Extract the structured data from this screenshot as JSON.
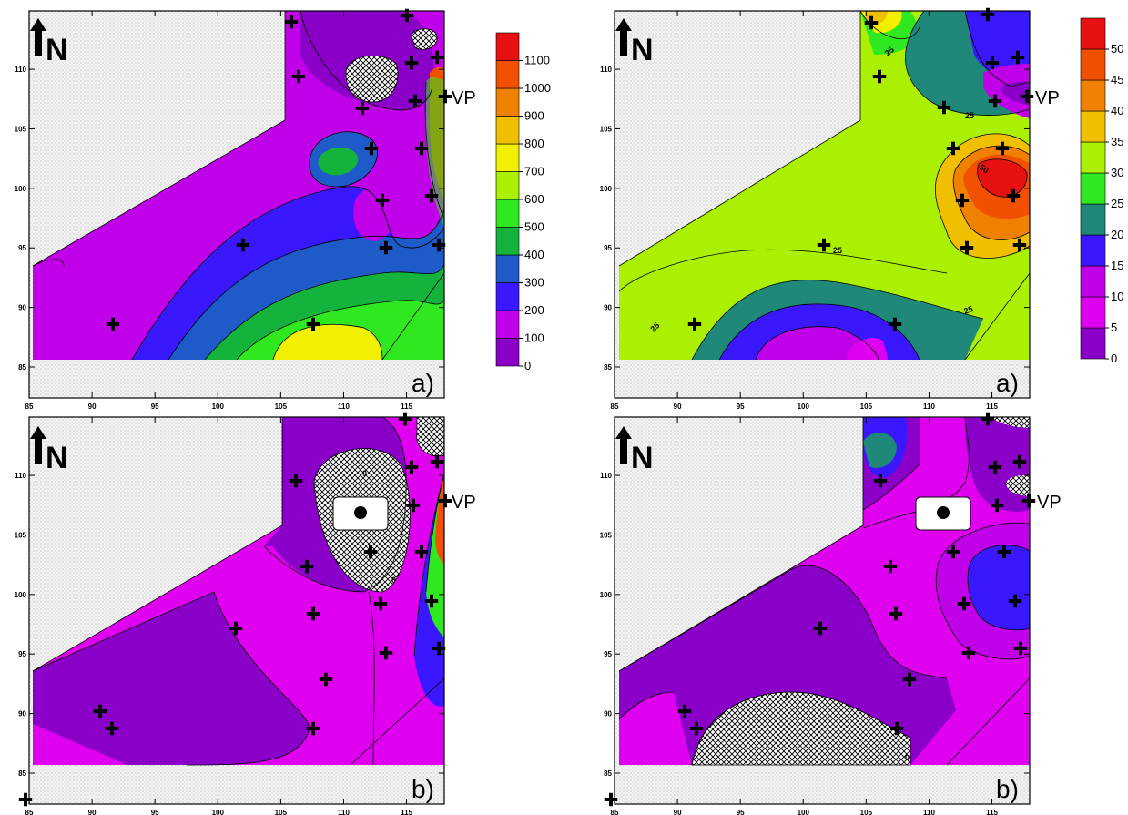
{
  "colors": {
    "c0": "#8a00c8",
    "c1": "#c000e8",
    "c2": "#e000f0",
    "c3": "#3a18ff",
    "c4": "#1e5ac8",
    "c5": "#14b43c",
    "c6": "#30e820",
    "c7": "#aaf000",
    "c8": "#f0f000",
    "c9": "#f0c000",
    "c10": "#f08000",
    "c11": "#f05000",
    "c12": "#e81010",
    "teal": "#208878",
    "blank": "#eeeeee"
  },
  "north_label": "N",
  "vp_label": "VP",
  "x_ticks": [
    "85",
    "90",
    "95",
    "100",
    "105",
    "110",
    "115"
  ],
  "y_ticks": [
    "85",
    "90",
    "95",
    "100",
    "105",
    "110"
  ],
  "panels": [
    {
      "id": "top-left",
      "tag": "a)",
      "isolines": []
    },
    {
      "id": "top-right",
      "tag": "a)",
      "isolines": [
        "25",
        "25",
        "25",
        "50",
        "25",
        "25",
        "25"
      ]
    },
    {
      "id": "bottom-left",
      "tag": "b)",
      "isolines": [
        "0",
        "0"
      ]
    },
    {
      "id": "bottom-right",
      "tag": "b)",
      "isolines": [
        "0",
        "0"
      ]
    }
  ],
  "colorbar_left": {
    "labels": [
      "0",
      "100",
      "200",
      "300",
      "400",
      "500",
      "600",
      "700",
      "800",
      "900",
      "1000",
      "1100"
    ]
  },
  "colorbar_right": {
    "labels": [
      "0",
      "5",
      "10",
      "15",
      "20",
      "25",
      "30",
      "35",
      "40",
      "45",
      "50"
    ]
  }
}
